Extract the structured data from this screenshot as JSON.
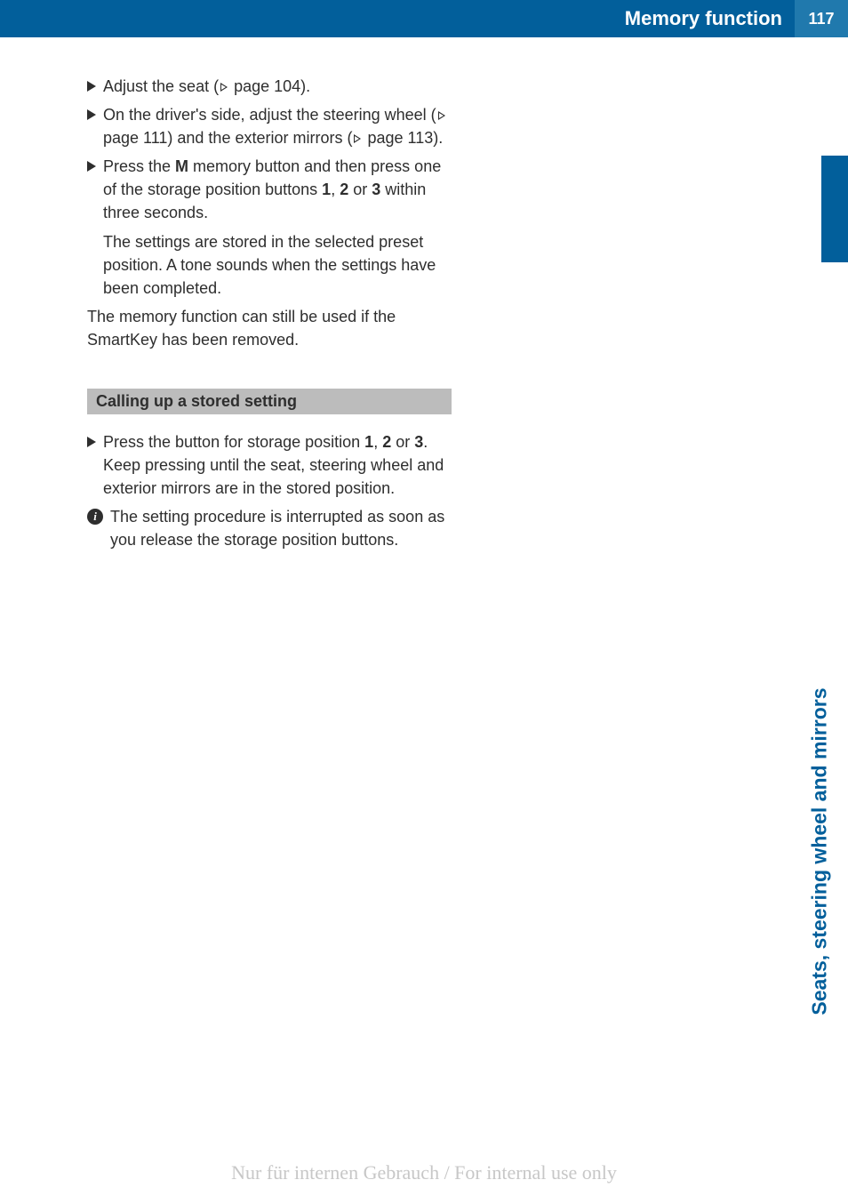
{
  "header": {
    "title": "Memory function",
    "page_number": "117"
  },
  "side_label": "Seats, steering wheel and mirrors",
  "steps": [
    {
      "type": "triangle",
      "text_parts": [
        "Adjust the seat (",
        "REF",
        " page 104)."
      ]
    },
    {
      "type": "triangle",
      "text_parts": [
        "On the driver's side, adjust the steering wheel (",
        "REF",
        " page 111) and the exterior mirrors (",
        "REF",
        " page 113)."
      ]
    },
    {
      "type": "triangle",
      "text_parts": [
        "Press the ",
        "BOLD:M",
        " memory button and then press one of the storage position buttons ",
        "BOLD:1",
        ", ",
        "BOLD:2",
        " or ",
        "BOLD:3",
        " within three seconds."
      ]
    }
  ],
  "indent_text": "The settings are stored in the selected preset position. A tone sounds when the settings have been completed.",
  "plain_text": "The memory function can still be used if the SmartKey has been removed.",
  "section_heading": "Calling up a stored setting",
  "section_steps": [
    {
      "type": "triangle",
      "text_parts": [
        "Press the button for storage position ",
        "BOLD:1",
        ", ",
        "BOLD:2",
        " or ",
        "BOLD:3",
        ". Keep pressing until the seat, steering wheel and exterior mirrors are in the stored position."
      ]
    },
    {
      "type": "info",
      "text_parts": [
        "The setting procedure is interrupted as soon as you release the storage position buttons."
      ]
    }
  ],
  "watermark": "Nur für internen Gebrauch / For internal use only"
}
